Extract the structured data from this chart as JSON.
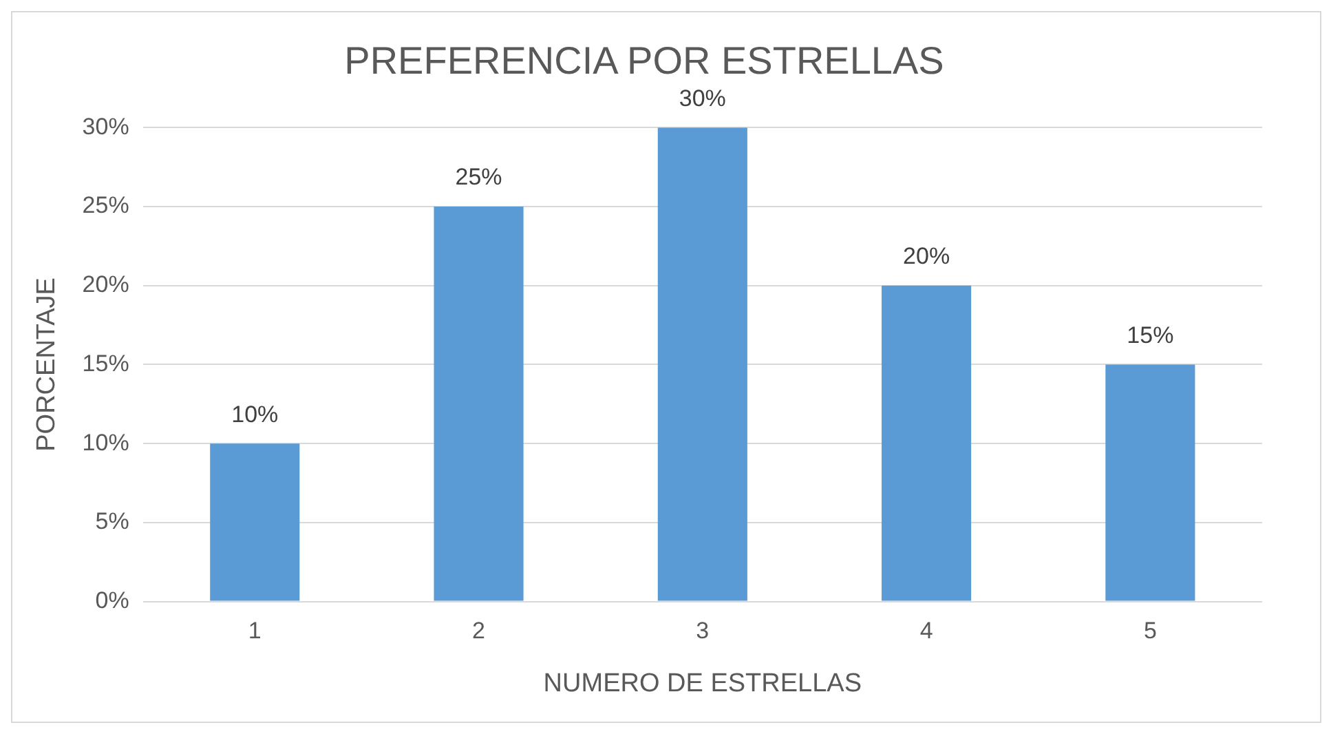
{
  "chart_data": {
    "type": "bar",
    "title": "PREFERENCIA POR ESTRELLAS",
    "xlabel": "NUMERO DE ESTRELLAS",
    "ylabel": "PORCENTAJE",
    "categories": [
      "1",
      "2",
      "3",
      "4",
      "5"
    ],
    "values": [
      10,
      25,
      30,
      20,
      15
    ],
    "value_labels": [
      "10%",
      "25%",
      "30%",
      "20%",
      "15%"
    ],
    "color": "#5b9bd5",
    "ylim": [
      0,
      30
    ],
    "yticks": [
      {
        "value": 0,
        "label": "0%"
      },
      {
        "value": 5,
        "label": "5%"
      },
      {
        "value": 10,
        "label": "10%"
      },
      {
        "value": 15,
        "label": "15%"
      },
      {
        "value": 20,
        "label": "20%"
      },
      {
        "value": 25,
        "label": "25%"
      },
      {
        "value": 30,
        "label": "30%"
      }
    ],
    "grid": "y",
    "legend": false
  }
}
